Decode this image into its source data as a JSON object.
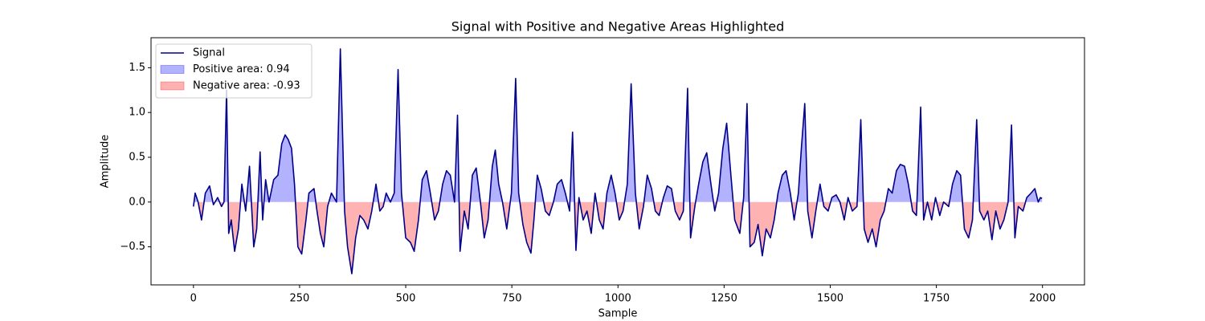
{
  "chart_data": {
    "type": "line",
    "title": "Signal with Positive and Negative Areas Highlighted",
    "x_label": "Sample",
    "y_label": "Amplitude",
    "xlim": [
      -99.95,
      2098.95
    ],
    "ylim": [
      -0.925,
      1.835
    ],
    "xticks": [
      0,
      250,
      500,
      750,
      1000,
      1250,
      1500,
      1750,
      2000
    ],
    "yticks": [
      {
        "value": -0.5,
        "label": "−0.5"
      },
      {
        "value": 0,
        "label": "0.0"
      },
      {
        "value": 0.5,
        "label": "0.5"
      },
      {
        "value": 1,
        "label": "1.0"
      },
      {
        "value": 1.5,
        "label": "1.5"
      }
    ],
    "legend": "upper left",
    "x": [
      0,
      4,
      11,
      19,
      28,
      38,
      47,
      57,
      66,
      72,
      78,
      83,
      89,
      97,
      106,
      114,
      123,
      132,
      142,
      149,
      157,
      163,
      170,
      178,
      189,
      199,
      208,
      216,
      223,
      231,
      238,
      246,
      255,
      265,
      272,
      284,
      291,
      299,
      307,
      316,
      325,
      337,
      346,
      356,
      363,
      373,
      382,
      392,
      401,
      411,
      420,
      430,
      439,
      447,
      454,
      464,
      473,
      482,
      490,
      500,
      511,
      520,
      530,
      539,
      549,
      558,
      568,
      577,
      587,
      596,
      605,
      615,
      622,
      628,
      638,
      647,
      657,
      666,
      676,
      685,
      694,
      704,
      711,
      719,
      728,
      738,
      749,
      759,
      766,
      776,
      785,
      795,
      802,
      810,
      819,
      829,
      838,
      848,
      857,
      867,
      876,
      886,
      893,
      901,
      908,
      918,
      927,
      937,
      946,
      956,
      965,
      974,
      984,
      993,
      1003,
      1012,
      1022,
      1031,
      1041,
      1050,
      1060,
      1069,
      1079,
      1088,
      1097,
      1107,
      1116,
      1126,
      1135,
      1145,
      1154,
      1164,
      1171,
      1181,
      1190,
      1200,
      1209,
      1219,
      1228,
      1237,
      1247,
      1256,
      1266,
      1275,
      1287,
      1296,
      1304,
      1311,
      1321,
      1330,
      1340,
      1349,
      1359,
      1368,
      1377,
      1387,
      1396,
      1406,
      1415,
      1425,
      1432,
      1440,
      1447,
      1457,
      1466,
      1476,
      1485,
      1495,
      1504,
      1514,
      1523,
      1533,
      1542,
      1552,
      1563,
      1572,
      1580,
      1589,
      1599,
      1608,
      1618,
      1627,
      1637,
      1646,
      1656,
      1665,
      1675,
      1684,
      1694,
      1703,
      1713,
      1720,
      1729,
      1739,
      1748,
      1758,
      1767,
      1779,
      1788,
      1798,
      1807,
      1816,
      1826,
      1835,
      1845,
      1852,
      1862,
      1871,
      1881,
      1890,
      1900,
      1909,
      1919,
      1927,
      1935,
      1943,
      1954,
      1963,
      1973,
      1982,
      1990,
      1995,
      1999
    ],
    "series": [
      {
        "name": "Signal",
        "color": "#00008b",
        "values": [
          -0.05,
          0.1,
          0.0,
          -0.2,
          0.1,
          0.18,
          -0.03,
          0.05,
          -0.05,
          0.0,
          1.25,
          -0.35,
          -0.2,
          -0.55,
          -0.3,
          0.2,
          -0.1,
          0.4,
          -0.5,
          -0.3,
          0.56,
          -0.2,
          0.25,
          0.0,
          0.25,
          0.3,
          0.65,
          0.75,
          0.7,
          0.6,
          0.2,
          -0.5,
          -0.58,
          -0.2,
          0.1,
          0.15,
          -0.1,
          -0.35,
          -0.5,
          -0.05,
          0.1,
          0.0,
          1.71,
          -0.1,
          -0.5,
          -0.8,
          -0.4,
          -0.15,
          -0.2,
          -0.3,
          -0.1,
          0.2,
          -0.1,
          -0.05,
          0.1,
          0.0,
          0.1,
          1.48,
          0.1,
          -0.4,
          -0.45,
          -0.55,
          -0.2,
          0.25,
          0.35,
          0.1,
          -0.2,
          -0.1,
          0.2,
          0.35,
          0.3,
          0.0,
          0.97,
          -0.55,
          -0.1,
          -0.3,
          0.3,
          0.38,
          0.0,
          -0.4,
          -0.2,
          0.4,
          0.58,
          0.2,
          0.0,
          -0.3,
          0.1,
          1.38,
          0.1,
          -0.25,
          -0.45,
          -0.57,
          -0.2,
          0.3,
          0.15,
          -0.1,
          -0.15,
          0.0,
          0.2,
          0.25,
          0.1,
          -0.1,
          0.78,
          -0.54,
          0.05,
          -0.2,
          -0.1,
          -0.35,
          0.1,
          -0.2,
          -0.3,
          0.1,
          0.3,
          0.1,
          -0.2,
          -0.1,
          0.2,
          1.32,
          0.1,
          -0.3,
          -0.05,
          0.3,
          0.15,
          -0.1,
          -0.15,
          0.05,
          0.18,
          0.15,
          -0.1,
          -0.2,
          -0.1,
          1.27,
          -0.4,
          -0.05,
          0.2,
          0.45,
          0.55,
          0.2,
          -0.1,
          0.1,
          0.6,
          0.88,
          0.3,
          -0.2,
          -0.35,
          0.05,
          1.1,
          -0.5,
          -0.45,
          -0.25,
          -0.6,
          -0.3,
          -0.4,
          -0.2,
          0.1,
          0.3,
          0.35,
          0.1,
          -0.2,
          0.1,
          0.6,
          1.1,
          -0.1,
          -0.4,
          -0.1,
          0.2,
          -0.05,
          -0.1,
          0.05,
          0.08,
          0.0,
          -0.2,
          0.05,
          -0.1,
          -0.05,
          0.92,
          -0.3,
          -0.45,
          -0.3,
          -0.5,
          -0.2,
          -0.1,
          0.15,
          0.1,
          0.35,
          0.42,
          0.4,
          0.2,
          -0.1,
          -0.15,
          1.06,
          -0.2,
          0.0,
          -0.2,
          0.05,
          -0.15,
          0.0,
          -0.05,
          0.2,
          0.35,
          0.3,
          -0.3,
          -0.4,
          -0.2,
          0.92,
          -0.1,
          -0.2,
          -0.1,
          -0.42,
          -0.1,
          -0.3,
          -0.2,
          0.0,
          0.86,
          -0.4,
          -0.05,
          -0.1,
          0.05,
          0.1,
          0.15,
          0.0,
          0.05,
          0.04
        ]
      }
    ],
    "fills": [
      {
        "name": "Positive area: 0.94",
        "color": "#0000ff"
      },
      {
        "name": "Negative area: -0.93",
        "color": "#ff0000"
      }
    ]
  }
}
